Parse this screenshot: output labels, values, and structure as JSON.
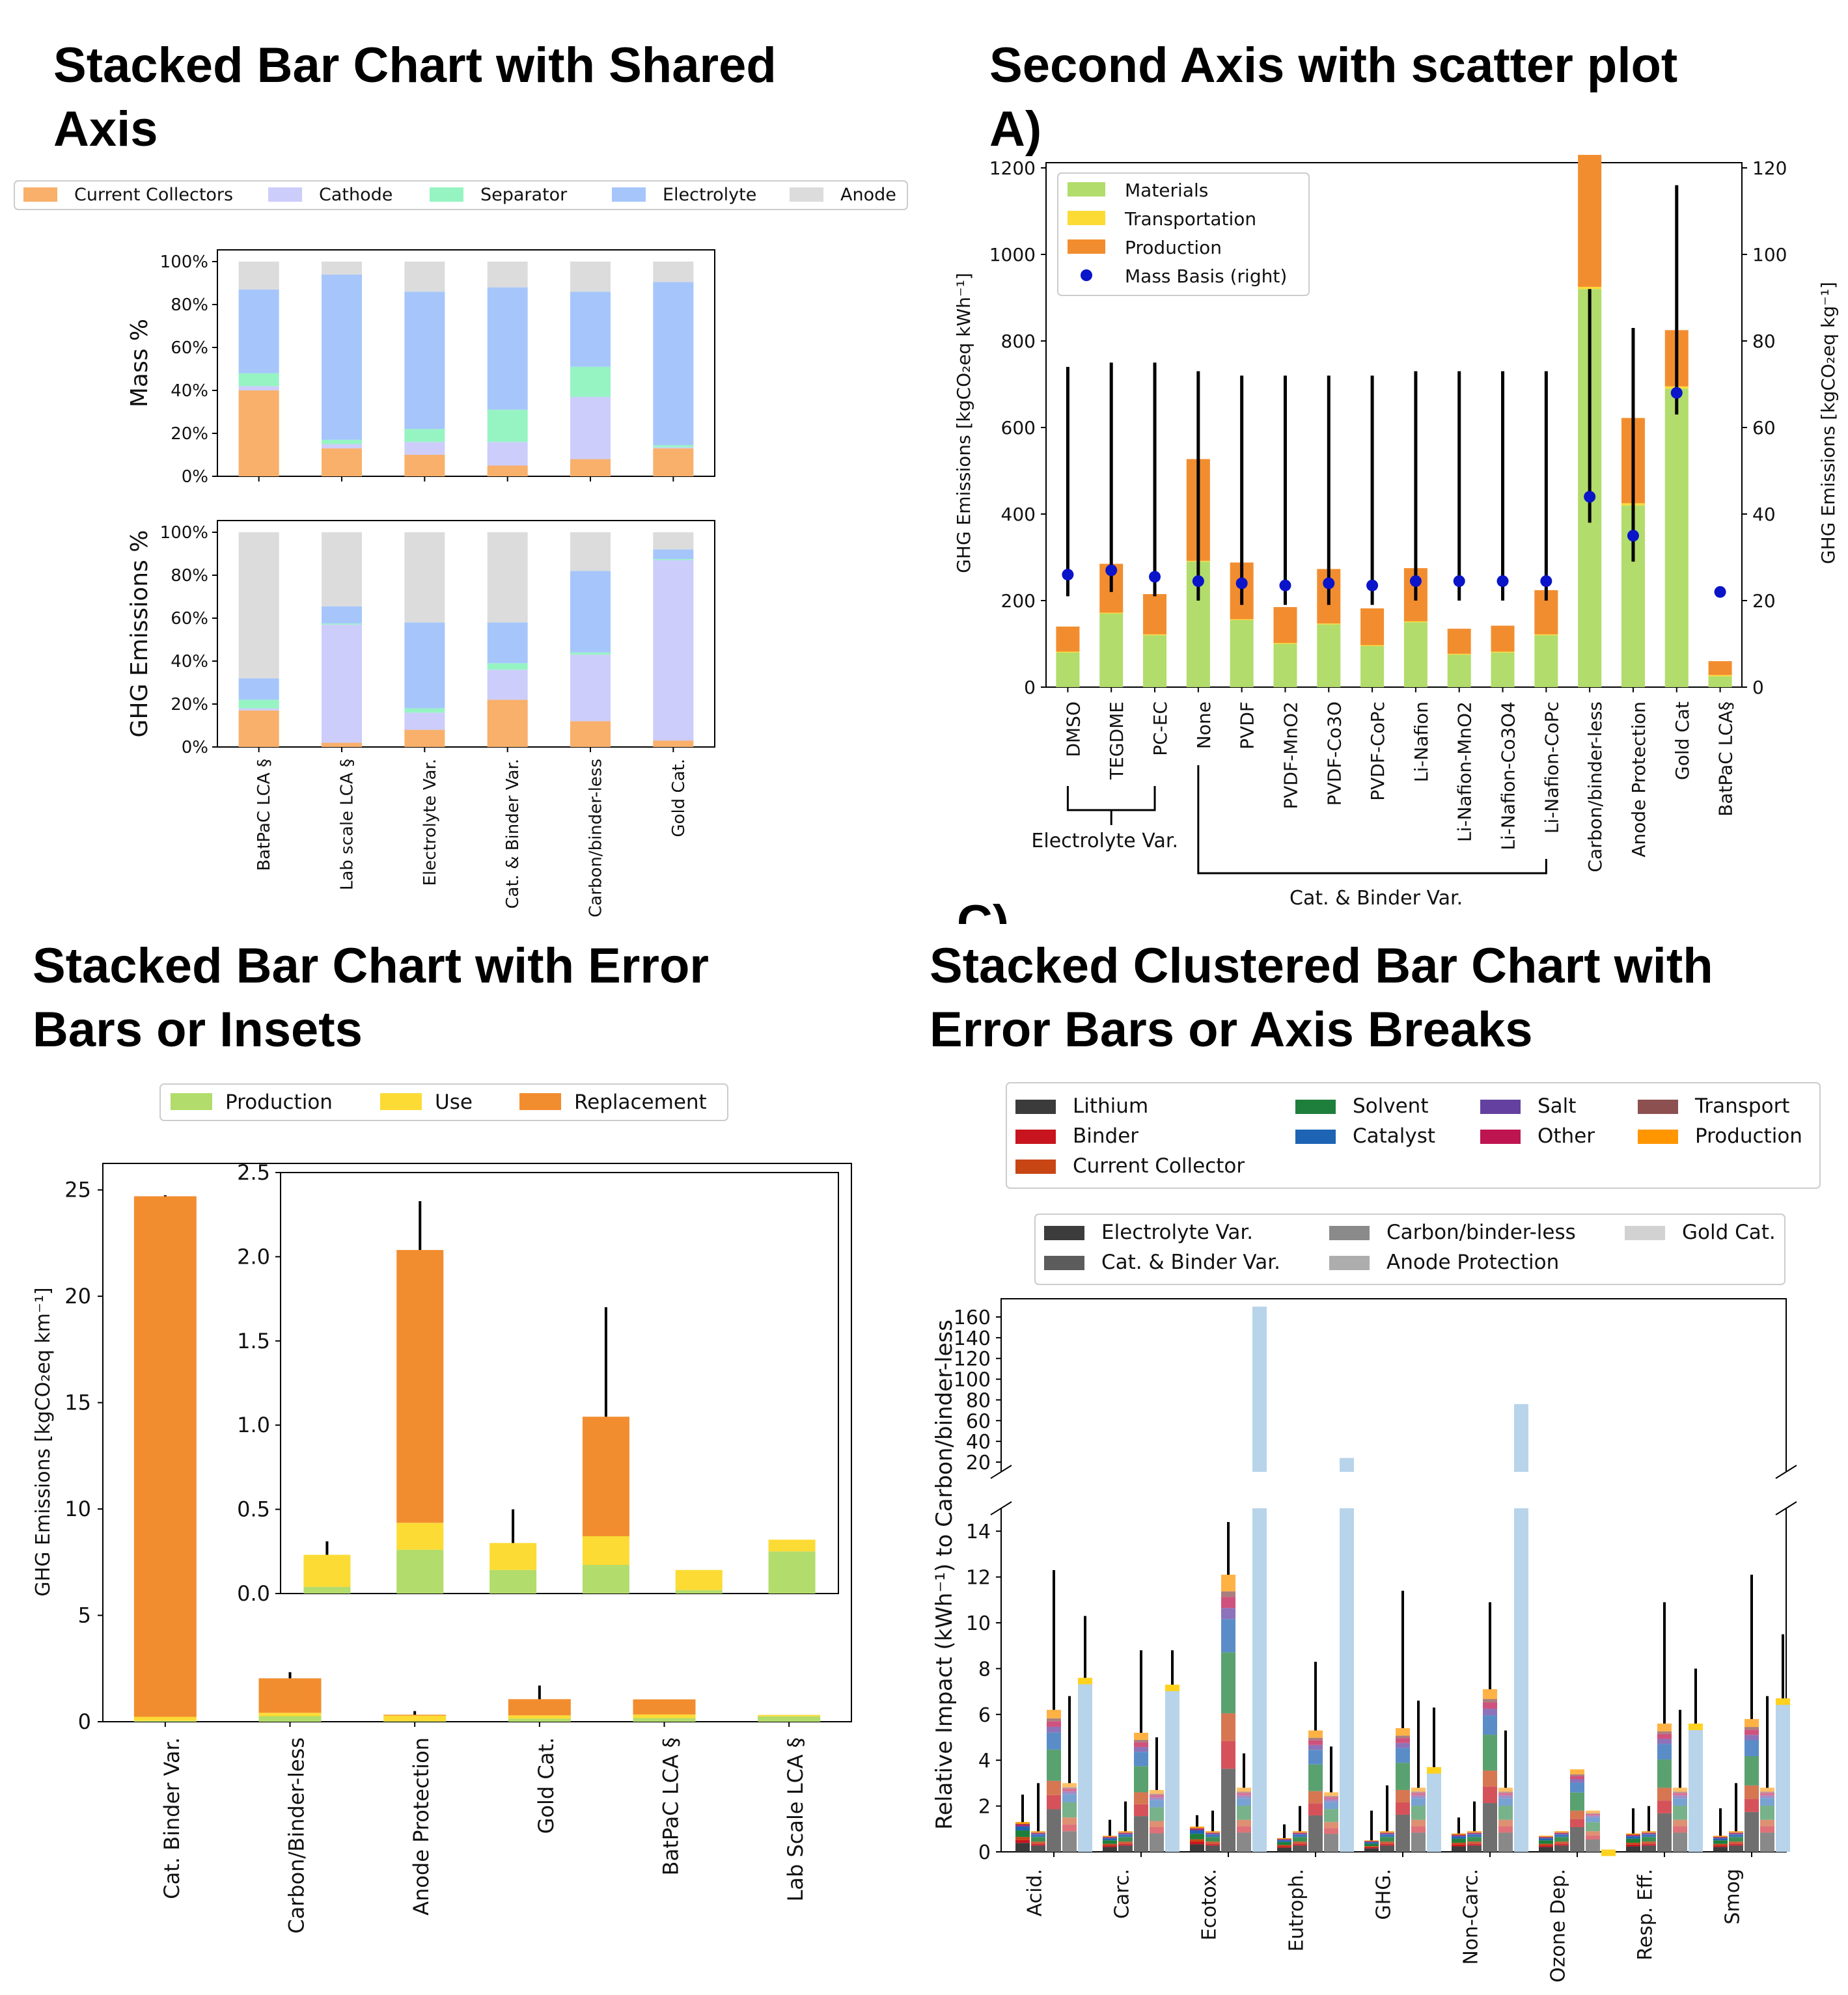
{
  "panels": {
    "tl": {
      "title_line1": "Stacked Bar Chart with Shared",
      "title_line2": "Axis"
    },
    "tr": {
      "title_line1": "Second Axis with scatter plot",
      "title_line2": "A)"
    },
    "bl": {
      "title_line1": "Stacked Bar Chart with Error",
      "title_line2": "Bars or Insets"
    },
    "br": {
      "title_line1": "Stacked Clustered Bar Chart with",
      "title_line2": "Error Bars or Axis Breaks"
    },
    "partial_letter": "C)"
  },
  "chart_data": [
    {
      "id": "tl",
      "type": "bar",
      "stacked": true,
      "categories": [
        "BatPaC LCA §",
        "Lab scale LCA §",
        "Electrolyte Var.",
        "Cat. & Binder Var.",
        "Carbon/binder-less",
        "Gold Cat."
      ],
      "legend": [
        "Current Collectors",
        "Cathode",
        "Separator",
        "Electrolyte",
        "Anode"
      ],
      "legend_position": "top",
      "colors": {
        "Current Collectors": "#f8b06b",
        "Cathode": "#cccdfb",
        "Separator": "#96f4c3",
        "Electrolyte": "#a6c6fb",
        "Anode": "#dcdcdc"
      },
      "subplots": [
        {
          "ylabel": "Mass %",
          "ylim": [
            0,
            100
          ],
          "yticks": [
            "0%",
            "20%",
            "40%",
            "60%",
            "80%",
            "100%"
          ],
          "series": [
            {
              "name": "Current Collectors",
              "values": [
                40,
                13,
                10,
                5,
                8,
                13
              ]
            },
            {
              "name": "Cathode",
              "values": [
                2,
                2,
                6,
                11,
                29,
                0.5
              ]
            },
            {
              "name": "Separator",
              "values": [
                6,
                2,
                6,
                15,
                14,
                1
              ]
            },
            {
              "name": "Electrolyte",
              "values": [
                39,
                77,
                64,
                57,
                35,
                76
              ]
            },
            {
              "name": "Anode",
              "values": [
                13,
                6,
                14,
                12,
                14,
                9.5
              ]
            }
          ]
        },
        {
          "ylabel": "GHG Emissions %",
          "ylim": [
            0,
            100
          ],
          "yticks": [
            "0%",
            "20%",
            "40%",
            "60%",
            "80%",
            "100%"
          ],
          "series": [
            {
              "name": "Current Collectors",
              "values": [
                17,
                2,
                8,
                22,
                12,
                3
              ]
            },
            {
              "name": "Cathode",
              "values": [
                1,
                55,
                8,
                14,
                31,
                84
              ]
            },
            {
              "name": "Separator",
              "values": [
                4,
                0.5,
                2,
                3,
                1,
                0.5
              ]
            },
            {
              "name": "Electrolyte",
              "values": [
                10,
                8,
                40,
                19,
                38,
                4.5
              ]
            },
            {
              "name": "Anode",
              "values": [
                68,
                34.5,
                42,
                42,
                18,
                8
              ]
            }
          ]
        }
      ]
    },
    {
      "id": "tr",
      "type": "bar",
      "stacked": true,
      "secondary_axis": true,
      "categories": [
        "DMSO",
        "TEGDME",
        "PC-EC",
        "None",
        "PVDF",
        "PVDF-MnO2",
        "PVDF-Co3O",
        "PVDF-CoPc",
        "Li-Nafion",
        "Li-Nafion-MnO2",
        "Li-Nafion-Co3O4",
        "Li-Nafion-CoPc",
        "Carbon/binder-less",
        "Anode Protection",
        "Gold Cat",
        "BatPaC LCA§"
      ],
      "ylabel_left": "GHG Emissions [kg_{CO2eq} kWh^{-1}]",
      "ylabel_right": "GHG Emissions [kg_{CO2eq} kg^{-1}]",
      "ylim_left": [
        0,
        1200
      ],
      "yticks_left": [
        0,
        200,
        400,
        600,
        800,
        1000,
        1200
      ],
      "ylim_right": [
        0,
        120
      ],
      "yticks_right": [
        0,
        20,
        40,
        60,
        80,
        100,
        120
      ],
      "legend": [
        "Materials",
        "Transportation",
        "Production",
        "Mass Basis (right)"
      ],
      "legend_position": "upper left",
      "colors": {
        "Materials": "#b2dc6b",
        "Transportation": "#fcdb35",
        "Production": "#f28d2f",
        "Mass Basis (right)": "#0a14c8"
      },
      "series": [
        {
          "name": "Materials",
          "values": [
            80,
            170,
            120,
            290,
            155,
            100,
            145,
            95,
            150,
            75,
            80,
            120,
            920,
            420,
            690,
            25
          ]
        },
        {
          "name": "Transportation",
          "values": [
            2,
            2,
            2,
            2,
            2,
            2,
            2,
            2,
            2,
            2,
            2,
            2,
            5,
            5,
            5,
            3
          ]
        },
        {
          "name": "Production",
          "values": [
            58,
            113,
            93,
            235,
            131,
            83,
            126,
            85,
            123,
            58,
            60,
            102,
            305,
            197,
            130,
            32
          ]
        }
      ],
      "scatter": {
        "name": "Mass Basis (right)",
        "values": [
          26,
          27,
          25.5,
          24.5,
          24,
          23.5,
          24,
          23.5,
          24.5,
          24.5,
          24.5,
          24.5,
          44,
          35,
          68,
          22
        ],
        "err_low": [
          21,
          22,
          21,
          20,
          19,
          19,
          19,
          19,
          20,
          20,
          20,
          20,
          38,
          29,
          63,
          null
        ],
        "err_high": [
          74,
          75,
          75,
          73,
          72,
          72,
          72,
          72,
          73,
          73,
          73,
          73,
          92,
          83,
          116,
          null
        ]
      },
      "groups": [
        {
          "label": "Electrolyte Var.",
          "from": 0,
          "to": 2
        },
        {
          "label": "Cat. & Binder Var.",
          "from": 3,
          "to": 11
        }
      ]
    },
    {
      "id": "bl",
      "type": "bar",
      "stacked": true,
      "inset": true,
      "categories": [
        "Cat. Binder Var.",
        "Carbon/Binder-less",
        "Anode Protection",
        "Gold Cat.",
        "BatPaC LCA §",
        "Lab Scale LCA §"
      ],
      "ylabel": "GHG Emissions [kg_{CO2eq} km^{-1}]",
      "ylim": [
        0,
        26
      ],
      "yticks": [
        0,
        5,
        10,
        15,
        20,
        25
      ],
      "legend": [
        "Production",
        "Use",
        "Replacement"
      ],
      "legend_position": "top",
      "colors": {
        "Production": "#b2dc6b",
        "Use": "#fcdb35",
        "Replacement": "#f28d2f"
      },
      "series": [
        {
          "name": "Production",
          "values": [
            0.04,
            0.26,
            0.02,
            0.14,
            0.17,
            0.25
          ]
        },
        {
          "name": "Use",
          "values": [
            0.19,
            0.16,
            0.27,
            0.16,
            0.17,
            0.07
          ]
        },
        {
          "name": "Replacement",
          "values": [
            24.47,
            1.62,
            0.04,
            0.76,
            0.71,
            0.0
          ]
        }
      ],
      "error_top": [
        24.75,
        2.33,
        0.5,
        1.7,
        null,
        null
      ],
      "inset_data": {
        "ylim": [
          0,
          2.5
        ],
        "yticks": [
          "0.0",
          "0.5",
          "1.0",
          "1.5",
          "2.0",
          "2.5"
        ],
        "series": [
          {
            "name": "Production",
            "values": [
              0.04,
              0.26,
              0.14,
              0.17,
              0.02,
              0.25
            ]
          },
          {
            "name": "Use",
            "values": [
              0.19,
              0.16,
              0.16,
              0.17,
              0.12,
              0.07
            ]
          },
          {
            "name": "Replacement",
            "values": [
              0.0,
              1.62,
              0.0,
              0.71,
              0.0,
              0.0
            ]
          }
        ],
        "error_top": [
          0.31,
          2.33,
          0.5,
          1.7,
          null,
          null
        ]
      }
    },
    {
      "id": "br",
      "type": "bar",
      "stacked": true,
      "clustered": true,
      "axis_break": true,
      "categories": [
        "Acid.",
        "Carc.",
        "Ecotox.",
        "Eutroph.",
        "GHG.",
        "Non-Carc.",
        "Ozone Dep.",
        "Resp. Eff.",
        "Smog"
      ],
      "ylabel": "Relative Impact (kWh⁻¹) to Carbon/binder-less",
      "ylim_lower": [
        0,
        15
      ],
      "yticks_lower": [
        0,
        2,
        4,
        6,
        8,
        10,
        12,
        14
      ],
      "ylim_upper": [
        20,
        170
      ],
      "yticks_upper": [
        20,
        40,
        60,
        80,
        100,
        120,
        140,
        160
      ],
      "legend_components": [
        "Lithium",
        "Solvent",
        "Salt",
        "Transport",
        "Binder",
        "Catalyst",
        "Other",
        "Production",
        "Current Collector"
      ],
      "legend_clusters": [
        "Electrolyte Var.",
        "Carbon/binder-less",
        "Gold Cat.",
        "Cat. & Binder Var.",
        "Anode Protection"
      ],
      "colors": {
        "Lithium": "#3b3b3b",
        "Binder": "#c8141e",
        "Current Collector": "#c84614",
        "Solvent": "#1e7f3c",
        "Catalyst": "#1e64b4",
        "Salt": "#6441a0",
        "Other": "#be1450",
        "Transport": "#8c5050",
        "Production": "#ff9600"
      },
      "cluster_colors": {
        "Electrolyte Var.": "#3c3c3c",
        "Cat. & Binder Var.": "#5c5c5c",
        "Carbon/binder-less": "#8a8a8a",
        "Anode Protection": "#adadad",
        "Gold Cat.": "#d2d2d2"
      },
      "clusters": [
        "Electrolyte Var.",
        "Cat. & Binder Var.",
        "Carbon/binder-less",
        "Anode Protection",
        "Gold Cat."
      ],
      "totals": [
        [
          1.3,
          0.9,
          6.2,
          3.0,
          7.6
        ],
        [
          0.7,
          0.9,
          5.2,
          2.7,
          7.3
        ],
        [
          1.1,
          0.9,
          12.1,
          2.8,
          171
        ],
        [
          0.6,
          0.9,
          5.3,
          2.6,
          24
        ],
        [
          0.5,
          0.9,
          5.4,
          2.8,
          3.7
        ],
        [
          0.8,
          0.9,
          7.1,
          2.8,
          76
        ],
        [
          0.7,
          0.9,
          3.6,
          1.8,
          0.1
        ],
        [
          0.8,
          0.9,
          5.6,
          2.8,
          5.6
        ],
        [
          0.7,
          0.9,
          5.8,
          2.8,
          6.7
        ]
      ],
      "error_top": [
        [
          2.5,
          3.0,
          12.3,
          6.8,
          10.3
        ],
        [
          1.4,
          2.2,
          8.8,
          5.0,
          8.8
        ],
        [
          1.6,
          1.8,
          14.4,
          4.3,
          null
        ],
        [
          1.2,
          2.0,
          8.3,
          4.6,
          null
        ],
        [
          1.8,
          2.9,
          11.4,
          6.6,
          6.3
        ],
        [
          1.5,
          2.2,
          10.9,
          5.3,
          null
        ],
        [
          null,
          null,
          null,
          null,
          null
        ],
        [
          1.9,
          2.0,
          10.9,
          6.2,
          8.0
        ],
        [
          1.9,
          3.0,
          12.1,
          6.8,
          9.5
        ]
      ]
    }
  ]
}
